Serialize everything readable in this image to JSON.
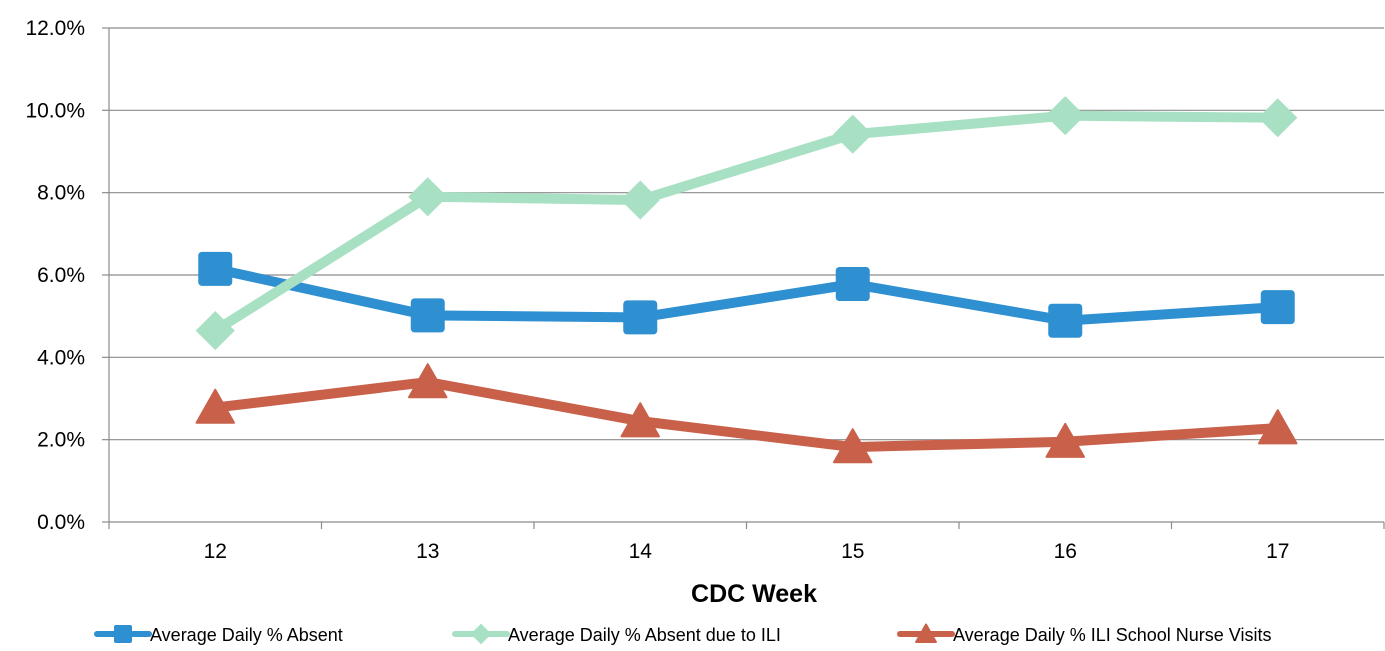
{
  "chart_data": {
    "type": "line",
    "title": "",
    "xlabel": "CDC Week",
    "ylabel": "",
    "categories": [
      "12",
      "13",
      "14",
      "15",
      "16",
      "17"
    ],
    "ylim": [
      0,
      0.12
    ],
    "yticks": [
      0,
      0.02,
      0.04,
      0.06,
      0.08,
      0.1,
      0.12
    ],
    "ytick_labels": [
      "0.0%",
      "2.0%",
      "4.0%",
      "6.0%",
      "8.0%",
      "10.0%",
      "12.0%"
    ],
    "grid": "horizontal",
    "legend_position": "bottom",
    "series": [
      {
        "name": "Average Daily % Absent",
        "values": [
          0.0615,
          0.0502,
          0.0497,
          0.0578,
          0.0489,
          0.0522
        ],
        "color": "#2e8fd1",
        "marker": "square"
      },
      {
        "name": "Average Daily % Absent due to ILI",
        "values": [
          0.0465,
          0.079,
          0.0782,
          0.0942,
          0.0987,
          0.0982
        ],
        "color": "#a8e0c4",
        "marker": "diamond"
      },
      {
        "name": "Average Daily % ILI School Nurse Visits",
        "values": [
          0.0278,
          0.034,
          0.0245,
          0.0182,
          0.0195,
          0.0228
        ],
        "color": "#c8604a",
        "marker": "triangle"
      }
    ]
  }
}
